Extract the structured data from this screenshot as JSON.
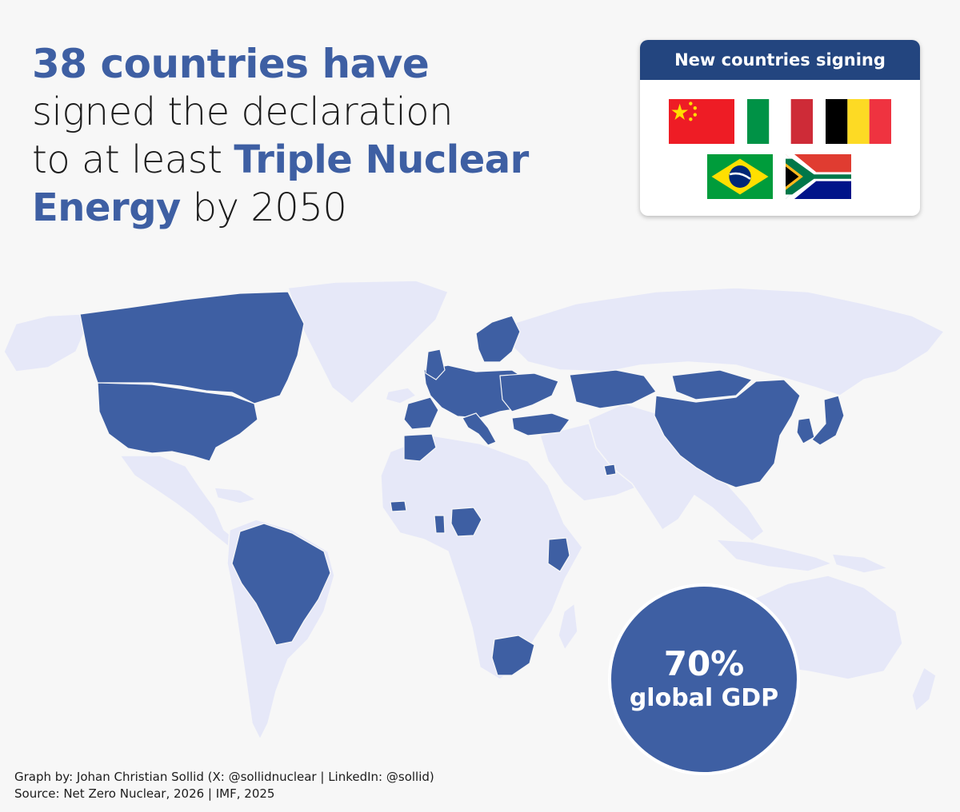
{
  "headline": {
    "line1": "38 countries have",
    "line2": "signed the declaration",
    "line3_pre": "to at least ",
    "line3_bold": "Triple Nuclear",
    "line4_bold": "Energy",
    "line4_post": " by 2050"
  },
  "new_countries_card": {
    "title": "New countries signing",
    "flags": [
      "China",
      "Italy",
      "Belgium",
      "Brazil",
      "South Africa"
    ]
  },
  "stat": {
    "value": "70%",
    "label": "global GDP"
  },
  "footer": {
    "credit": "Graph by: Johan Christian Sollid (X: @sollidnuclear | LinkedIn: @sollid)",
    "source": "Source: Net Zero Nuclear, 2026 | IMF, 2025"
  },
  "colors": {
    "signatory": "#3e5fa3",
    "non_signatory": "#e6e8f8",
    "background": "#f7f7f7",
    "card_header": "#23457f"
  }
}
